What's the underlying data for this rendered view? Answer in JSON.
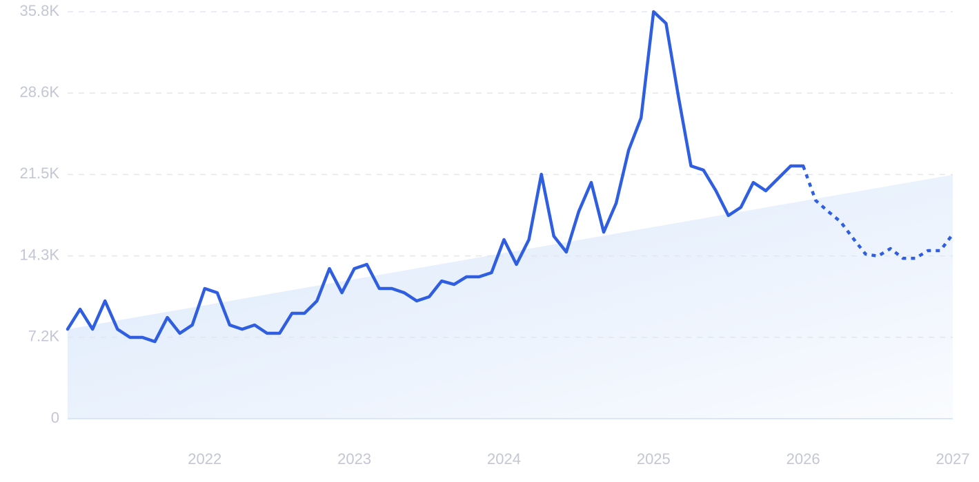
{
  "chart_data": {
    "type": "line",
    "categories": [
      null,
      null,
      null,
      null,
      null,
      null,
      null,
      null,
      null,
      null,
      null,
      "2022",
      null,
      null,
      null,
      null,
      null,
      null,
      null,
      null,
      null,
      null,
      null,
      "2023",
      null,
      null,
      null,
      null,
      null,
      null,
      null,
      null,
      null,
      null,
      null,
      "2024",
      null,
      null,
      null,
      null,
      null,
      null,
      null,
      null,
      null,
      null,
      null,
      "2025",
      null,
      null,
      null,
      null,
      null,
      null,
      null,
      null,
      null,
      null,
      null,
      "2026",
      null,
      null,
      null,
      null,
      null,
      null,
      null,
      null,
      null,
      null,
      null,
      "2027"
    ],
    "series": [
      {
        "color": "#2f5fe0",
        "style": "solid",
        "values": [
          7870,
          9630,
          7870,
          10360,
          7870,
          7150,
          7150,
          6780,
          8900,
          7510,
          8240,
          11450,
          11080,
          8240,
          7870,
          8240,
          7510,
          7510,
          9270,
          9270,
          10360,
          13200,
          11080,
          13200,
          13570,
          11450,
          11450,
          11080,
          10360,
          10720,
          12110,
          11810,
          12480,
          12480,
          12840,
          15750,
          13570,
          15750,
          21500,
          16050,
          14660,
          18230,
          20780,
          16410,
          18960,
          23620,
          26470,
          35800,
          34770,
          28290,
          22230,
          21870,
          20050,
          17870,
          18590,
          20780,
          20050,
          21140,
          22230,
          22230,
          null,
          null,
          null,
          null,
          null,
          null,
          null,
          null,
          null,
          null,
          null,
          null
        ]
      },
      {
        "color": "#2f5fe0",
        "style": "dotted",
        "values": [
          null,
          null,
          null,
          null,
          null,
          null,
          null,
          null,
          null,
          null,
          null,
          null,
          null,
          null,
          null,
          null,
          null,
          null,
          null,
          null,
          null,
          null,
          null,
          null,
          null,
          null,
          null,
          null,
          null,
          null,
          null,
          null,
          null,
          null,
          null,
          null,
          null,
          null,
          null,
          null,
          null,
          null,
          null,
          null,
          null,
          null,
          null,
          null,
          null,
          null,
          null,
          null,
          null,
          null,
          null,
          null,
          null,
          null,
          null,
          22230,
          19200,
          18230,
          17320,
          15870,
          14480,
          14300,
          14960,
          14110,
          14110,
          14780,
          14780,
          16230
        ]
      }
    ],
    "trend_area": {
      "color": "#dbe8fb",
      "values": [
        7870,
        21450
      ]
    },
    "ylim": [
      0,
      35800
    ],
    "yticks": [
      0,
      {
        "value": 7160,
        "label": "7.2K"
      },
      {
        "value": 14320,
        "label": "14.3K"
      },
      {
        "value": 21480,
        "label": "21.5K"
      },
      {
        "value": 28640,
        "label": "28.6K"
      },
      {
        "value": 35800,
        "label": "35.8K"
      }
    ],
    "grid": true
  }
}
